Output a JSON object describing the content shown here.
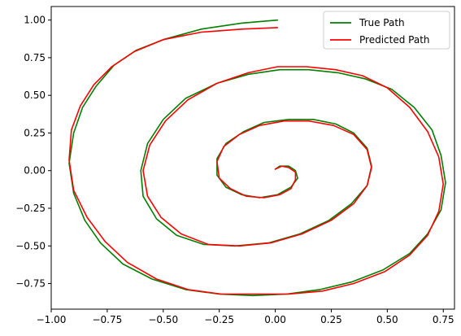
{
  "chart_data": {
    "type": "line",
    "title": "",
    "xlabel": "",
    "ylabel": "",
    "xlim": [
      -1.0,
      0.8
    ],
    "ylim": [
      -0.92,
      1.09
    ],
    "xticks": [
      -1.0,
      -0.75,
      -0.5,
      -0.25,
      0.0,
      0.25,
      0.5,
      0.75
    ],
    "xtick_labels": [
      "−1.00",
      "−0.75",
      "−0.50",
      "−0.25",
      "0.00",
      "0.25",
      "0.50",
      "0.75"
    ],
    "yticks": [
      -0.75,
      -0.5,
      -0.25,
      0.0,
      0.25,
      0.5,
      0.75,
      1.0
    ],
    "ytick_labels": [
      "−0.75",
      "−0.50",
      "−0.25",
      "0.00",
      "0.25",
      "0.50",
      "0.75",
      "1.00"
    ],
    "grid": false,
    "legend_position": "top-right",
    "series": [
      {
        "name": "True Path",
        "color": "#008000",
        "x": [
          0.01,
          -0.15,
          -0.33,
          -0.5,
          -0.62,
          -0.72,
          -0.8,
          -0.86,
          -0.9,
          -0.92,
          -0.9,
          -0.85,
          -0.78,
          -0.68,
          -0.55,
          -0.4,
          -0.25,
          -0.1,
          0.05,
          0.2,
          0.34,
          0.48,
          0.6,
          0.68,
          0.74,
          0.76,
          0.74,
          0.7,
          0.62,
          0.52,
          0.4,
          0.28,
          0.15,
          0.02,
          -0.12,
          -0.26,
          -0.4,
          -0.5,
          -0.57,
          -0.6,
          -0.59,
          -0.53,
          -0.44,
          -0.32,
          -0.18,
          -0.03,
          0.11,
          0.24,
          0.34,
          0.41,
          0.43,
          0.41,
          0.35,
          0.27,
          0.17,
          0.06,
          -0.05,
          -0.14,
          -0.22,
          -0.26,
          -0.26,
          -0.22,
          -0.15,
          -0.07,
          0.01,
          0.07,
          0.1,
          0.09,
          0.06,
          0.02,
          0.0
        ],
        "y": [
          1.0,
          0.98,
          0.94,
          0.87,
          0.8,
          0.7,
          0.56,
          0.42,
          0.25,
          0.05,
          -0.15,
          -0.33,
          -0.48,
          -0.62,
          -0.72,
          -0.79,
          -0.82,
          -0.83,
          -0.82,
          -0.79,
          -0.74,
          -0.66,
          -0.55,
          -0.42,
          -0.26,
          -0.08,
          0.1,
          0.27,
          0.42,
          0.54,
          0.61,
          0.65,
          0.67,
          0.67,
          0.64,
          0.58,
          0.48,
          0.34,
          0.18,
          0.0,
          -0.17,
          -0.32,
          -0.43,
          -0.49,
          -0.5,
          -0.48,
          -0.42,
          -0.33,
          -0.22,
          -0.1,
          0.03,
          0.15,
          0.25,
          0.31,
          0.34,
          0.34,
          0.32,
          0.26,
          0.18,
          0.08,
          -0.03,
          -0.11,
          -0.16,
          -0.18,
          -0.16,
          -0.11,
          -0.05,
          0.0,
          0.03,
          0.03,
          0.01
        ]
      },
      {
        "name": "Predicted Path",
        "color": "#ff0000",
        "x": [
          0.01,
          -0.15,
          -0.33,
          -0.5,
          -0.63,
          -0.73,
          -0.81,
          -0.87,
          -0.91,
          -0.92,
          -0.9,
          -0.84,
          -0.76,
          -0.66,
          -0.53,
          -0.39,
          -0.24,
          -0.09,
          0.06,
          0.21,
          0.35,
          0.49,
          0.6,
          0.68,
          0.73,
          0.75,
          0.73,
          0.68,
          0.6,
          0.5,
          0.39,
          0.27,
          0.14,
          0.01,
          -0.12,
          -0.26,
          -0.39,
          -0.49,
          -0.56,
          -0.59,
          -0.57,
          -0.51,
          -0.42,
          -0.3,
          -0.16,
          -0.02,
          0.12,
          0.25,
          0.35,
          0.41,
          0.43,
          0.41,
          0.35,
          0.26,
          0.15,
          0.04,
          -0.07,
          -0.16,
          -0.23,
          -0.26,
          -0.25,
          -0.2,
          -0.13,
          -0.05,
          0.02,
          0.07,
          0.09,
          0.09,
          0.06,
          0.03,
          0.0
        ],
        "y": [
          0.95,
          0.94,
          0.92,
          0.87,
          0.79,
          0.69,
          0.57,
          0.43,
          0.27,
          0.07,
          -0.13,
          -0.31,
          -0.47,
          -0.61,
          -0.72,
          -0.79,
          -0.82,
          -0.82,
          -0.82,
          -0.8,
          -0.75,
          -0.67,
          -0.56,
          -0.43,
          -0.27,
          -0.09,
          0.09,
          0.26,
          0.42,
          0.55,
          0.63,
          0.67,
          0.69,
          0.69,
          0.65,
          0.58,
          0.47,
          0.33,
          0.17,
          0.0,
          -0.17,
          -0.31,
          -0.42,
          -0.49,
          -0.5,
          -0.48,
          -0.42,
          -0.33,
          -0.22,
          -0.1,
          0.02,
          0.14,
          0.24,
          0.3,
          0.33,
          0.33,
          0.3,
          0.24,
          0.16,
          0.06,
          -0.05,
          -0.12,
          -0.17,
          -0.18,
          -0.16,
          -0.12,
          -0.06,
          -0.01,
          0.02,
          0.03,
          0.01
        ]
      }
    ]
  }
}
